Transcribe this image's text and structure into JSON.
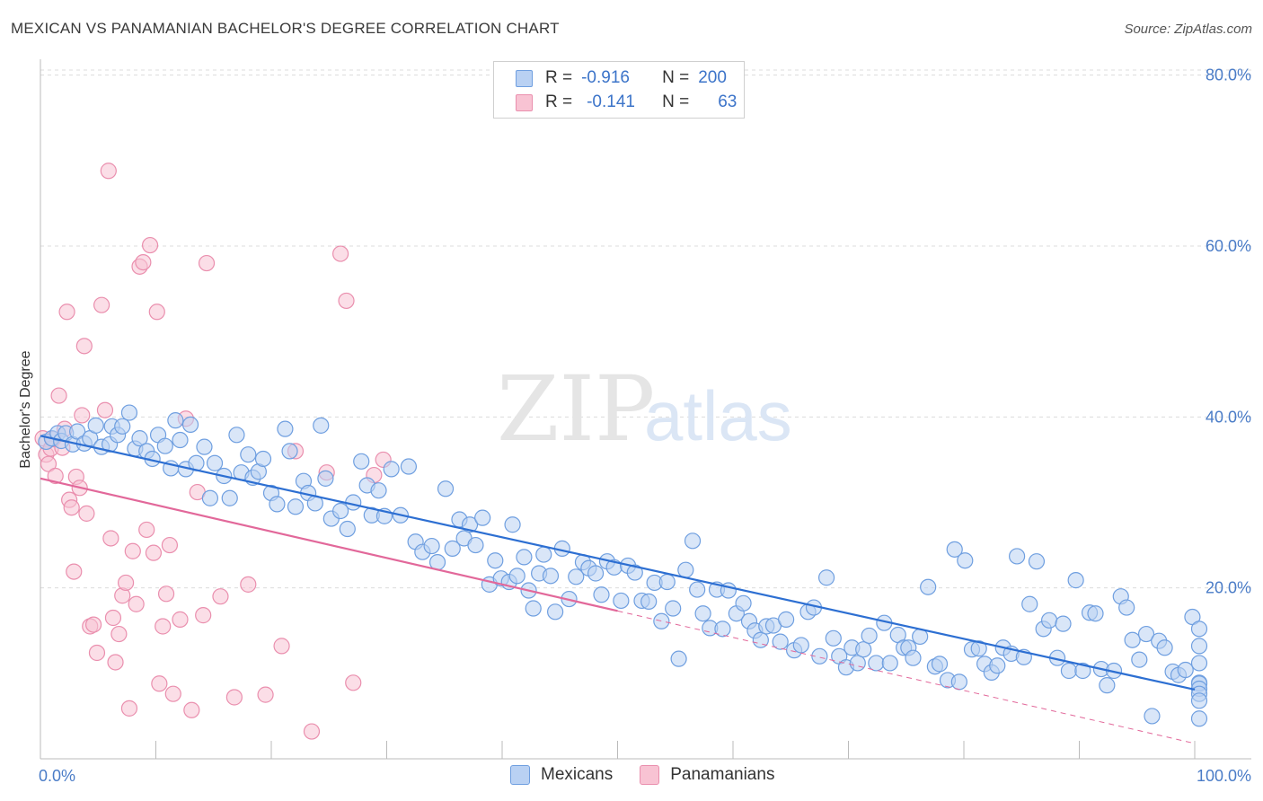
{
  "title": "MEXICAN VS PANAMANIAN BACHELOR'S DEGREE CORRELATION CHART",
  "source": "Source: ZipAtlas.com",
  "watermark": {
    "zip": "ZIP",
    "atlas": "atlas"
  },
  "colors": {
    "mexicans_fill": "#b9d1f3",
    "mexicans_stroke": "#6f9fe0",
    "mexicans_line": "#2d6fd2",
    "panamanians_fill": "#f8c3d3",
    "panamanians_stroke": "#ea8fae",
    "panamanians_line": "#e2689a",
    "tick_text": "#4a7cc7",
    "grid": "#dcdcdc"
  },
  "legend": {
    "rows": [
      {
        "r_label": "R =",
        "r_value": "-0.916",
        "n_label": "N =",
        "n_value": "200"
      },
      {
        "r_label": "R =",
        "r_value": "-0.141",
        "n_label": "N =",
        "n_value": "63"
      }
    ]
  },
  "bottom_legend": {
    "mexicans": "Mexicans",
    "panamanians": "Panamanians"
  },
  "chart_data": {
    "type": "scatter",
    "ylabel": "Bachelor's Degree",
    "xlabel": "",
    "x_ticks": [
      "0.0%",
      "100.0%"
    ],
    "y_ticks": [
      "20.0%",
      "40.0%",
      "60.0%",
      "80.0%"
    ],
    "xlim": [
      0,
      100
    ],
    "ylim": [
      0,
      80
    ],
    "grid": true,
    "series": [
      {
        "name": "Mexicans",
        "R": -0.916,
        "N": 200,
        "trend": {
          "x": [
            0,
            100
          ],
          "y": [
            37.8,
            8.1
          ]
        },
        "points": [
          [
            0.5,
            37.1
          ],
          [
            1,
            37.5
          ],
          [
            1.5,
            38.1
          ],
          [
            1.8,
            37.2
          ],
          [
            2.2,
            38.1
          ],
          [
            2.8,
            36.8
          ],
          [
            3.2,
            38.3
          ],
          [
            3.8,
            36.9
          ],
          [
            4.3,
            37.5
          ],
          [
            4.8,
            39.0
          ],
          [
            5.3,
            36.5
          ],
          [
            6,
            36.8
          ],
          [
            6.2,
            38.9
          ],
          [
            6.7,
            37.9
          ],
          [
            7.1,
            38.9
          ],
          [
            7.7,
            40.5
          ],
          [
            8.2,
            36.3
          ],
          [
            8.6,
            37.5
          ],
          [
            9.2,
            36.0
          ],
          [
            9.7,
            35.1
          ],
          [
            10.2,
            37.9
          ],
          [
            10.8,
            36.6
          ],
          [
            11.3,
            34.0
          ],
          [
            11.7,
            39.6
          ],
          [
            12.1,
            37.3
          ],
          [
            12.6,
            33.9
          ],
          [
            13,
            39.1
          ],
          [
            13.5,
            34.6
          ],
          [
            14.2,
            36.5
          ],
          [
            14.7,
            30.5
          ],
          [
            15.1,
            34.6
          ],
          [
            15.9,
            33.1
          ],
          [
            16.4,
            30.5
          ],
          [
            17,
            37.9
          ],
          [
            17.4,
            33.5
          ],
          [
            18,
            35.6
          ],
          [
            18.4,
            32.9
          ],
          [
            18.9,
            33.6
          ],
          [
            19.3,
            35.1
          ],
          [
            20,
            31.1
          ],
          [
            20.5,
            29.8
          ],
          [
            21.2,
            38.6
          ],
          [
            21.6,
            36.0
          ],
          [
            22.1,
            29.5
          ],
          [
            22.8,
            32.5
          ],
          [
            23.2,
            31.1
          ],
          [
            23.8,
            29.9
          ],
          [
            24.3,
            39.0
          ],
          [
            24.7,
            32.8
          ],
          [
            25.2,
            28.1
          ],
          [
            26,
            29.0
          ],
          [
            26.6,
            26.9
          ],
          [
            27.1,
            30.0
          ],
          [
            27.8,
            34.8
          ],
          [
            28.3,
            32.0
          ],
          [
            28.7,
            28.5
          ],
          [
            29.3,
            31.4
          ],
          [
            29.8,
            28.4
          ],
          [
            30.4,
            33.9
          ],
          [
            31.2,
            28.5
          ],
          [
            31.9,
            34.2
          ],
          [
            32.5,
            25.4
          ],
          [
            33.1,
            24.2
          ],
          [
            33.9,
            24.9
          ],
          [
            34.4,
            23.0
          ],
          [
            35.1,
            31.6
          ],
          [
            35.7,
            24.6
          ],
          [
            36.3,
            28.0
          ],
          [
            36.7,
            25.8
          ],
          [
            37.2,
            27.4
          ],
          [
            37.7,
            25.0
          ],
          [
            38.3,
            28.2
          ],
          [
            38.9,
            20.4
          ],
          [
            39.4,
            23.2
          ],
          [
            39.9,
            21.1
          ],
          [
            40.6,
            20.7
          ],
          [
            40.9,
            27.4
          ],
          [
            41.3,
            21.4
          ],
          [
            41.9,
            23.6
          ],
          [
            42.3,
            19.7
          ],
          [
            42.7,
            17.6
          ],
          [
            43.2,
            21.7
          ],
          [
            43.6,
            23.9
          ],
          [
            44.2,
            21.4
          ],
          [
            44.6,
            17.2
          ],
          [
            45.2,
            24.6
          ],
          [
            45.8,
            18.7
          ],
          [
            46.4,
            21.3
          ],
          [
            47,
            23.0
          ],
          [
            47.5,
            22.3
          ],
          [
            48.1,
            21.7
          ],
          [
            48.6,
            19.2
          ],
          [
            49.1,
            23.1
          ],
          [
            49.7,
            22.4
          ],
          [
            50.3,
            18.5
          ],
          [
            50.9,
            22.6
          ],
          [
            51.5,
            21.8
          ],
          [
            52.1,
            18.5
          ],
          [
            52.7,
            18.4
          ],
          [
            53.2,
            20.6
          ],
          [
            53.8,
            16.1
          ],
          [
            54.3,
            20.7
          ],
          [
            54.8,
            17.6
          ],
          [
            55.3,
            11.7
          ],
          [
            55.9,
            22.1
          ],
          [
            56.5,
            25.5
          ],
          [
            56.9,
            19.8
          ],
          [
            57.4,
            17.0
          ],
          [
            58,
            15.3
          ],
          [
            58.6,
            19.8
          ],
          [
            59.1,
            15.2
          ],
          [
            59.6,
            19.7
          ],
          [
            60.3,
            17.0
          ],
          [
            60.9,
            18.2
          ],
          [
            61.4,
            16.1
          ],
          [
            61.9,
            15.0
          ],
          [
            62.4,
            13.9
          ],
          [
            62.9,
            15.5
          ],
          [
            63.5,
            15.6
          ],
          [
            64.1,
            13.7
          ],
          [
            64.6,
            16.3
          ],
          [
            65.3,
            12.7
          ],
          [
            65.9,
            13.3
          ],
          [
            66.5,
            17.2
          ],
          [
            67,
            17.7
          ],
          [
            67.5,
            12.0
          ],
          [
            68.1,
            21.2
          ],
          [
            68.7,
            14.1
          ],
          [
            69.2,
            12.0
          ],
          [
            69.8,
            10.7
          ],
          [
            70.3,
            13.0
          ],
          [
            70.8,
            11.2
          ],
          [
            71.3,
            12.8
          ],
          [
            71.8,
            14.4
          ],
          [
            72.4,
            11.2
          ],
          [
            73.1,
            15.9
          ],
          [
            73.6,
            11.2
          ],
          [
            74.3,
            14.5
          ],
          [
            74.8,
            13.0
          ],
          [
            75.2,
            13.0
          ],
          [
            75.6,
            11.8
          ],
          [
            76.2,
            14.3
          ],
          [
            76.9,
            20.1
          ],
          [
            77.5,
            10.8
          ],
          [
            77.9,
            11.1
          ],
          [
            78.6,
            9.2
          ],
          [
            79.2,
            24.5
          ],
          [
            79.6,
            9.0
          ],
          [
            80.1,
            23.2
          ],
          [
            80.7,
            12.8
          ],
          [
            81.3,
            12.9
          ],
          [
            81.8,
            11.1
          ],
          [
            82.4,
            10.1
          ],
          [
            82.9,
            10.9
          ],
          [
            83.4,
            13.0
          ],
          [
            84.1,
            12.3
          ],
          [
            84.6,
            23.7
          ],
          [
            85.2,
            11.9
          ],
          [
            85.7,
            18.1
          ],
          [
            86.3,
            23.1
          ],
          [
            86.9,
            15.2
          ],
          [
            87.4,
            16.2
          ],
          [
            88.1,
            11.8
          ],
          [
            88.6,
            15.8
          ],
          [
            89.1,
            10.3
          ],
          [
            89.7,
            20.9
          ],
          [
            90.3,
            10.3
          ],
          [
            90.9,
            17.1
          ],
          [
            91.4,
            17.0
          ],
          [
            91.9,
            10.5
          ],
          [
            92.4,
            8.6
          ],
          [
            93,
            10.3
          ],
          [
            93.6,
            19.0
          ],
          [
            94.1,
            17.7
          ],
          [
            94.6,
            13.9
          ],
          [
            95.2,
            11.6
          ],
          [
            95.8,
            14.6
          ],
          [
            96.3,
            5.0
          ],
          [
            96.9,
            13.8
          ],
          [
            97.4,
            13.0
          ],
          [
            98.1,
            10.2
          ],
          [
            98.6,
            9.8
          ],
          [
            99.2,
            10.4
          ],
          [
            99.8,
            16.6
          ],
          [
            100.5,
            8.9
          ],
          [
            100.9,
            15.2
          ],
          [
            101.4,
            8.8
          ],
          [
            102,
            4.7
          ],
          [
            102.6,
            8.2
          ],
          [
            103.1,
            7.6
          ],
          [
            103.6,
            13.2
          ],
          [
            104.2,
            11.2
          ],
          [
            104.7,
            6.8
          ]
        ]
      },
      {
        "name": "Panamanians",
        "R": -0.141,
        "N": 63,
        "trend": {
          "x": [
            0,
            50
          ],
          "y": [
            32.8,
            17.3
          ]
        },
        "trend_dashed": {
          "x": [
            50,
            100
          ],
          "y": [
            17.3,
            1.8
          ]
        },
        "points": [
          [
            0.2,
            37.5
          ],
          [
            0.5,
            35.6
          ],
          [
            0.7,
            34.5
          ],
          [
            0.9,
            36.3
          ],
          [
            1.1,
            37.4
          ],
          [
            1.3,
            33.1
          ],
          [
            1.6,
            42.5
          ],
          [
            1.9,
            36.4
          ],
          [
            2.1,
            38.6
          ],
          [
            2.3,
            52.3
          ],
          [
            2.5,
            30.3
          ],
          [
            2.7,
            29.4
          ],
          [
            2.9,
            21.9
          ],
          [
            3.1,
            33.0
          ],
          [
            3.4,
            31.7
          ],
          [
            3.6,
            40.2
          ],
          [
            3.8,
            48.3
          ],
          [
            4,
            28.7
          ],
          [
            4.3,
            15.5
          ],
          [
            4.6,
            15.7
          ],
          [
            4.9,
            12.4
          ],
          [
            5.3,
            53.1
          ],
          [
            5.6,
            40.8
          ],
          [
            5.9,
            68.8
          ],
          [
            6.1,
            25.8
          ],
          [
            6.3,
            16.5
          ],
          [
            6.5,
            11.3
          ],
          [
            6.8,
            14.6
          ],
          [
            7.1,
            19.1
          ],
          [
            7.4,
            20.6
          ],
          [
            7.7,
            5.9
          ],
          [
            8,
            24.3
          ],
          [
            8.3,
            18.1
          ],
          [
            8.6,
            57.6
          ],
          [
            8.9,
            58.1
          ],
          [
            9.2,
            26.8
          ],
          [
            9.5,
            60.1
          ],
          [
            9.8,
            24.1
          ],
          [
            10.1,
            52.3
          ],
          [
            10.3,
            8.8
          ],
          [
            10.6,
            15.5
          ],
          [
            10.9,
            19.3
          ],
          [
            11.2,
            25.0
          ],
          [
            11.5,
            7.6
          ],
          [
            12.1,
            16.3
          ],
          [
            12.6,
            39.8
          ],
          [
            13.1,
            5.7
          ],
          [
            13.6,
            31.2
          ],
          [
            14.1,
            16.8
          ],
          [
            14.4,
            58.0
          ],
          [
            15.6,
            19.0
          ],
          [
            16.8,
            7.2
          ],
          [
            18,
            20.4
          ],
          [
            19.5,
            7.5
          ],
          [
            20.9,
            13.2
          ],
          [
            22.1,
            36.0
          ],
          [
            23.5,
            3.2
          ],
          [
            24.8,
            33.5
          ],
          [
            26,
            59.1
          ],
          [
            26.5,
            53.6
          ],
          [
            27.1,
            8.9
          ],
          [
            28.9,
            33.2
          ],
          [
            29.7,
            35.0
          ]
        ]
      }
    ]
  }
}
